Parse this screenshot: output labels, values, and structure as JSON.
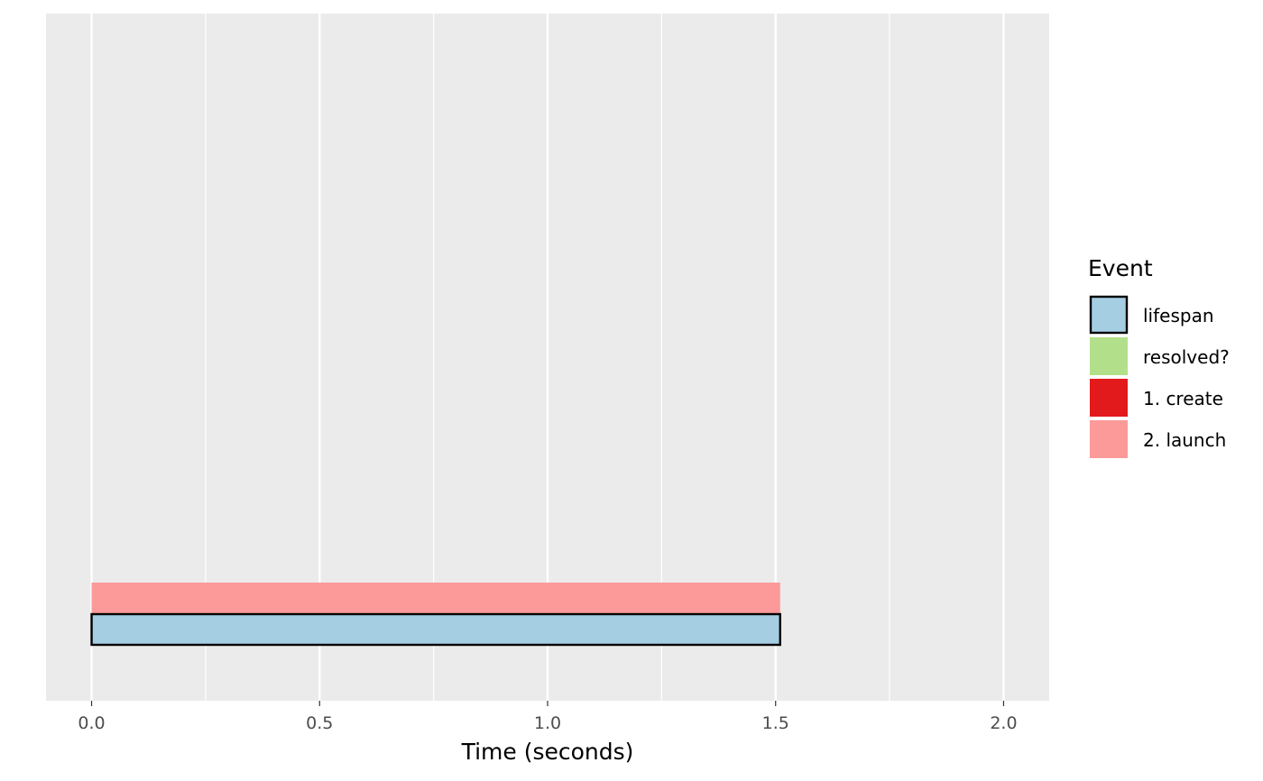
{
  "chart_data": {
    "type": "bar",
    "orientation": "horizontal",
    "xlabel": "Time (seconds)",
    "ylabel": "",
    "xlim": [
      -0.1,
      2.1
    ],
    "x_ticks": [
      0.0,
      0.5,
      1.0,
      1.5,
      2.0
    ],
    "x_tick_labels": [
      "0.0",
      "0.5",
      "1.0",
      "1.5",
      "2.0"
    ],
    "grid": true,
    "background": "#ebebeb",
    "legend": {
      "title": "Event",
      "position": "right",
      "entries": [
        {
          "label": "lifespan",
          "color": "#a6cee3",
          "outlined": true
        },
        {
          "label": "resolved?",
          "color": "#b2df8a",
          "outlined": false
        },
        {
          "label": "1. create",
          "color": "#e31a1c",
          "outlined": false
        },
        {
          "label": "2. launch",
          "color": "#fb9a99",
          "outlined": false
        }
      ]
    },
    "series": [
      {
        "event": "2. launch",
        "start": 0.0,
        "end": 1.51,
        "color": "#fb9a99",
        "outlined": false,
        "lane": "upper"
      },
      {
        "event": "lifespan",
        "start": 0.0,
        "end": 1.51,
        "color": "#a6cee3",
        "outlined": true,
        "lane": "lower"
      }
    ]
  }
}
